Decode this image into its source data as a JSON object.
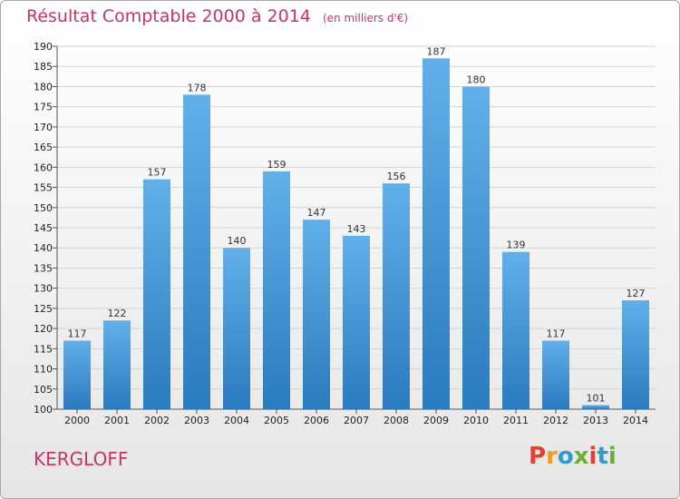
{
  "title": "Résultat Comptable 2000 à 2014",
  "unit_note": "(en milliers d'€)",
  "town": "KERGLOFF",
  "logo_text": "Proxiti",
  "colors": {
    "title": "#c8365f",
    "bar_top": "#62b0ea",
    "bar_bottom": "#2a7bbd",
    "logo": [
      "#e8402f",
      "#f29b1b",
      "#2f9ad8",
      "#6ab033",
      "#e8402f",
      "#2f9ad8",
      "#6ab033"
    ]
  },
  "chart_data": {
    "type": "bar",
    "title": "Résultat Comptable 2000 à 2014",
    "categories": [
      "2000",
      "2001",
      "2002",
      "2003",
      "2004",
      "2005",
      "2006",
      "2007",
      "2008",
      "2009",
      "2010",
      "2011",
      "2012",
      "2013",
      "2014"
    ],
    "values": [
      117,
      122,
      157,
      178,
      140,
      159,
      147,
      143,
      156,
      187,
      180,
      139,
      117,
      101,
      127
    ],
    "ylim": [
      100,
      190
    ],
    "yticks": [
      100,
      105,
      110,
      115,
      120,
      125,
      130,
      135,
      140,
      145,
      150,
      155,
      160,
      165,
      170,
      175,
      180,
      185,
      190
    ],
    "grid": true,
    "legend": "none"
  }
}
